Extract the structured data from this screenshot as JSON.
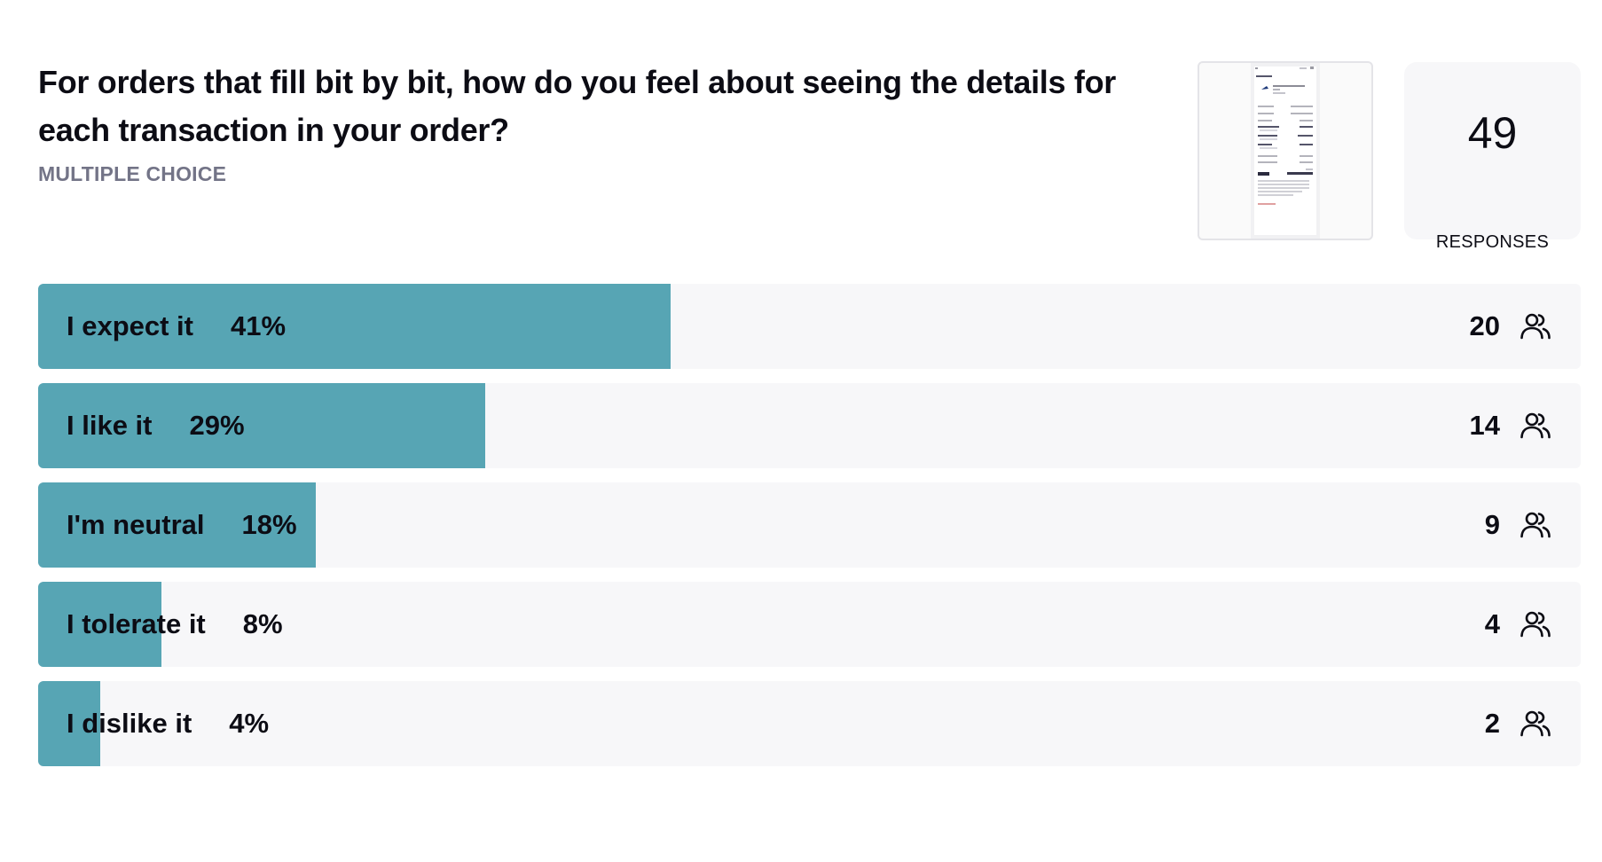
{
  "question": {
    "title": "For orders that fill bit by bit, how do you feel about seeing the details for each transaction in your order?",
    "type": "MULTIPLE CHOICE"
  },
  "responses": {
    "count": "49",
    "label": "RESPONSES"
  },
  "icons": {
    "respondents": "people-icon"
  },
  "colors": {
    "bar_fill": "#57a5b4",
    "bar_track": "#f7f7f9",
    "muted_text": "#737487"
  },
  "chart_data": {
    "type": "bar",
    "orientation": "horizontal",
    "categories": [
      "I expect it",
      "I like it",
      "I'm neutral",
      "I tolerate it",
      "I dislike it"
    ],
    "percent_labels": [
      "41%",
      "29%",
      "18%",
      "8%",
      "4%"
    ],
    "values": [
      41,
      29,
      18,
      8,
      4
    ],
    "counts": [
      20,
      14,
      9,
      4,
      2
    ],
    "xlim": [
      0,
      100
    ],
    "grid": false
  }
}
